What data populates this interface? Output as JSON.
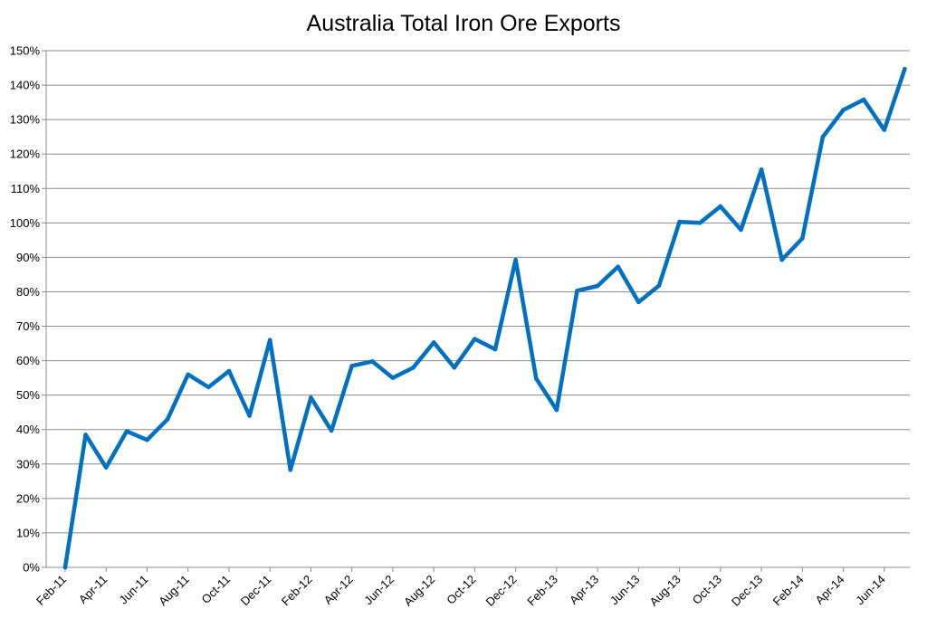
{
  "chart_data": {
    "type": "line",
    "title": "Australia Total Iron Ore Exports",
    "xlabel": "",
    "ylabel": "",
    "ylim": [
      0,
      1.5
    ],
    "y_ticks": [
      "0%",
      "10%",
      "20%",
      "30%",
      "40%",
      "50%",
      "60%",
      "70%",
      "80%",
      "90%",
      "100%",
      "110%",
      "120%",
      "130%",
      "140%",
      "150%"
    ],
    "x_tick_labels": [
      "Feb-11",
      "Apr-11",
      "Jun-11",
      "Aug-11",
      "Oct-11",
      "Dec-11",
      "Feb-12",
      "Apr-12",
      "Jun-12",
      "Aug-12",
      "Oct-12",
      "Dec-12",
      "Feb-13",
      "Apr-13",
      "Jun-13",
      "Aug-13",
      "Oct-13",
      "Dec-13",
      "Feb-14",
      "Apr-14",
      "Jun-14"
    ],
    "grid": "horizontal",
    "legend": "none",
    "line_color": "#0070C0",
    "x": [
      "Feb-11",
      "Mar-11",
      "Apr-11",
      "May-11",
      "Jun-11",
      "Jul-11",
      "Aug-11",
      "Sep-11",
      "Oct-11",
      "Nov-11",
      "Dec-11",
      "Jan-12",
      "Feb-12",
      "Mar-12",
      "Apr-12",
      "May-12",
      "Jun-12",
      "Jul-12",
      "Aug-12",
      "Sep-12",
      "Oct-12",
      "Nov-12",
      "Dec-12",
      "Jan-13",
      "Feb-13",
      "Mar-13",
      "Apr-13",
      "May-13",
      "Jun-13",
      "Jul-13",
      "Aug-13",
      "Sep-13",
      "Oct-13",
      "Nov-13",
      "Dec-13",
      "Jan-14",
      "Feb-14",
      "Mar-14",
      "Apr-14",
      "May-14",
      "Jun-14",
      "Jul-14"
    ],
    "series": [
      {
        "values": [
          0.0,
          0.385,
          0.29,
          0.395,
          0.37,
          0.43,
          0.56,
          0.523,
          0.57,
          0.44,
          0.66,
          0.283,
          0.493,
          0.397,
          0.585,
          0.598,
          0.55,
          0.58,
          0.653,
          0.58,
          0.663,
          0.633,
          0.893,
          0.548,
          0.457,
          0.803,
          0.817,
          0.873,
          0.77,
          0.818,
          1.003,
          1.0,
          1.048,
          0.98,
          1.155,
          0.893,
          0.955,
          1.25,
          1.328,
          1.358,
          1.27,
          1.447
        ]
      }
    ]
  }
}
